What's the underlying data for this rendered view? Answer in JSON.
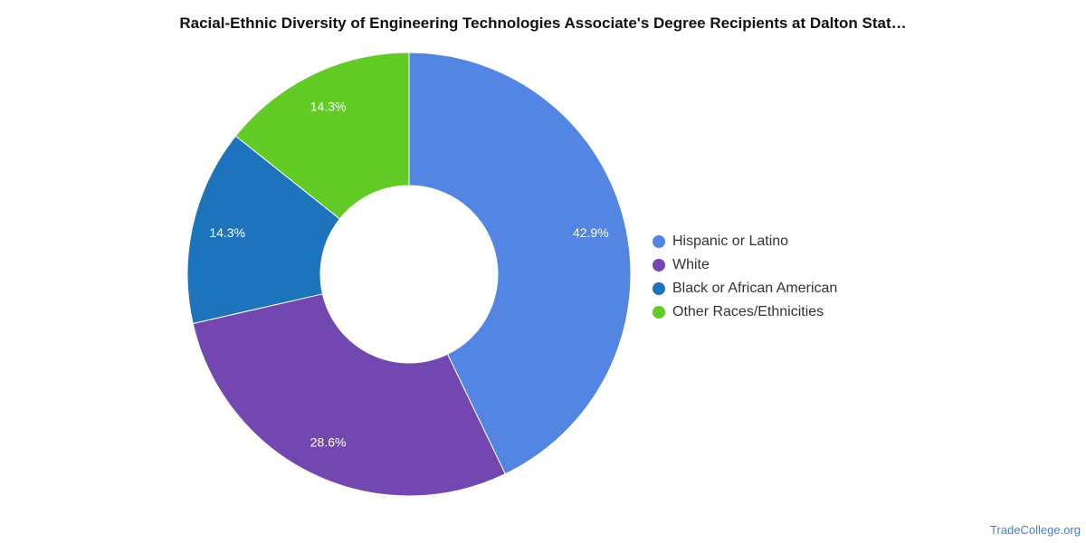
{
  "chart_data": {
    "type": "pie",
    "title": "Racial-Ethnic Diversity of Engineering Technologies Associate's Degree Recipients at Dalton Stat…",
    "donut": true,
    "legend_position": "right",
    "slices": [
      {
        "name": "Hispanic or Latino",
        "value": 42.9,
        "label": "42.9%",
        "color": "#5286e2"
      },
      {
        "name": "White",
        "value": 28.6,
        "label": "28.6%",
        "color": "#7347b0"
      },
      {
        "name": "Black or African American",
        "value": 14.3,
        "label": "14.3%",
        "color": "#1e73bd"
      },
      {
        "name": "Other Races/Ethnicities",
        "value": 14.3,
        "label": "14.3%",
        "color": "#62cb26"
      }
    ]
  },
  "footer": {
    "source": "TradeCollege.org"
  }
}
